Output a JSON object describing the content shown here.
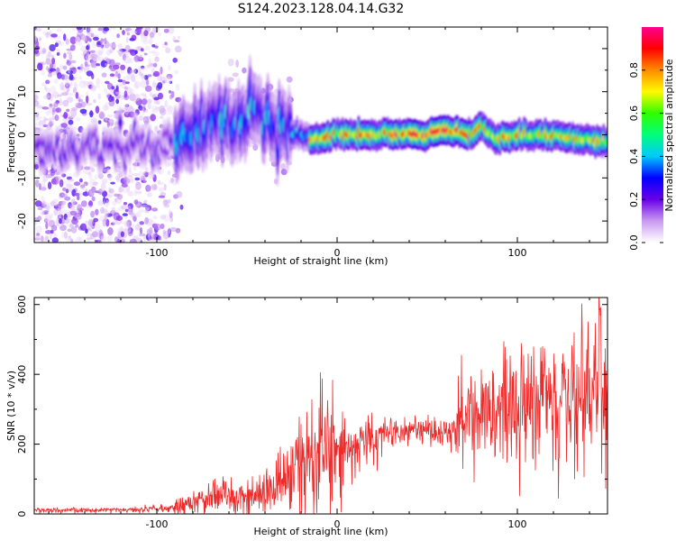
{
  "title": "S124.2023.128.04.14.G32",
  "chart_data": [
    {
      "type": "heatmap",
      "xlabel": "Height of straight line (km)",
      "ylabel": "Frequency (Hz)",
      "xlim": [
        -168,
        150
      ],
      "ylim": [
        -25,
        25
      ],
      "xticks": [
        -100,
        0,
        100
      ],
      "yticks": [
        -20,
        -10,
        0,
        10,
        20
      ],
      "colorbar": {
        "label": "Normalized spectral amplitude",
        "range": [
          0,
          1
        ],
        "ticks": [
          0.0,
          0.2,
          0.4,
          0.6,
          0.8
        ],
        "colors": [
          "#ffffff",
          "#c99af0",
          "#6a00e8",
          "#0000ff",
          "#00c8ff",
          "#00ff7a",
          "#2fff00",
          "#fffa00",
          "#ff8c00",
          "#ff0000",
          "#ff0090"
        ]
      },
      "ridge": [
        [
          -168,
          -3
        ],
        [
          -130,
          -3
        ],
        [
          -100,
          -3
        ],
        [
          -85,
          0
        ],
        [
          -70,
          3
        ],
        [
          -45,
          5
        ],
        [
          -25,
          0
        ],
        [
          -10,
          -1
        ],
        [
          0,
          0
        ],
        [
          25,
          0
        ],
        [
          50,
          0
        ],
        [
          60,
          1
        ],
        [
          75,
          0
        ],
        [
          80,
          2
        ],
        [
          88,
          -1
        ],
        [
          100,
          0
        ],
        [
          110,
          0
        ],
        [
          120,
          0
        ],
        [
          130,
          -1
        ],
        [
          140,
          -1
        ],
        [
          150,
          -2
        ]
      ]
    },
    {
      "type": "line",
      "xlabel": "Height of straight line (km)",
      "ylabel": "SNR (10 * v/v)",
      "xlim": [
        -168,
        150
      ],
      "ylim": [
        0,
        620
      ],
      "xticks": [
        -100,
        0,
        100
      ],
      "yticks": [
        0,
        200,
        400,
        600
      ],
      "color": "#ee2b2b",
      "trend": [
        [
          -168,
          10
        ],
        [
          -120,
          12
        ],
        [
          -90,
          18
        ],
        [
          -75,
          35
        ],
        [
          -65,
          60
        ],
        [
          -50,
          45
        ],
        [
          -40,
          60
        ],
        [
          -30,
          90
        ],
        [
          -20,
          150
        ],
        [
          -10,
          190
        ],
        [
          0,
          170
        ],
        [
          10,
          190
        ],
        [
          20,
          215
        ],
        [
          35,
          240
        ],
        [
          50,
          245
        ],
        [
          60,
          235
        ],
        [
          75,
          250
        ],
        [
          85,
          270
        ],
        [
          95,
          290
        ],
        [
          110,
          310
        ],
        [
          125,
          320
        ],
        [
          140,
          320
        ],
        [
          150,
          320
        ]
      ]
    }
  ]
}
